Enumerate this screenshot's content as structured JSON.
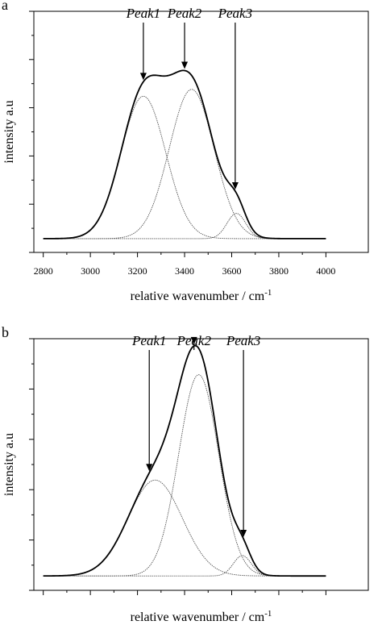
{
  "chart_data": [
    {
      "type": "line",
      "panel_label": "a",
      "xlabel": "relative wavenumber / cm",
      "xlabel_sup": "-1",
      "ylabel": "intensity a.u",
      "xlim": [
        2760,
        4180
      ],
      "ylim": [
        -0.05,
        1.0
      ],
      "x_ticks": [
        2800,
        3000,
        3200,
        3400,
        3600,
        3800,
        4000
      ],
      "x_tick_labels": [
        "2800",
        "3000",
        "3200",
        "3400",
        "3600",
        "3800",
        "4000"
      ],
      "show_x_tick_labels": true,
      "grid": false,
      "baseline": 0.01,
      "components": [
        {
          "label": "Peak1",
          "center": 3225,
          "amplitude": 0.62,
          "sigma": 95
        },
        {
          "label": "Peak2",
          "center": 3430,
          "amplitude": 0.65,
          "sigma": 95
        },
        {
          "label": "Peak3",
          "center": 3620,
          "amplitude": 0.11,
          "sigma": 40
        }
      ],
      "annotations": [
        {
          "text": "Peak1",
          "x": 3225
        },
        {
          "text": "Peak2",
          "x": 3400
        },
        {
          "text": "Peak3",
          "x": 3615
        }
      ]
    },
    {
      "type": "line",
      "panel_label": "b",
      "xlabel": "relative wavenumber / cm",
      "xlabel_sup": "-1",
      "ylabel": "intensity a.u",
      "xlim": [
        2760,
        4180
      ],
      "ylim": [
        -0.05,
        1.0
      ],
      "x_ticks": [
        2800,
        3000,
        3200,
        3400,
        3600,
        3800,
        4000
      ],
      "x_tick_labels": [],
      "show_x_tick_labels": false,
      "grid": false,
      "baseline": 0.01,
      "components": [
        {
          "label": "Peak1",
          "center": 3275,
          "amplitude": 0.4,
          "sigma": 115
        },
        {
          "label": "Peak2",
          "center": 3460,
          "amplitude": 0.84,
          "sigma": 85
        },
        {
          "label": "Peak3",
          "center": 3645,
          "amplitude": 0.085,
          "sigma": 38
        }
      ],
      "annotations": [
        {
          "text": "Peak1",
          "x": 3250
        },
        {
          "text": "Peak2",
          "x": 3440
        },
        {
          "text": "Peak3",
          "x": 3650
        }
      ]
    }
  ]
}
